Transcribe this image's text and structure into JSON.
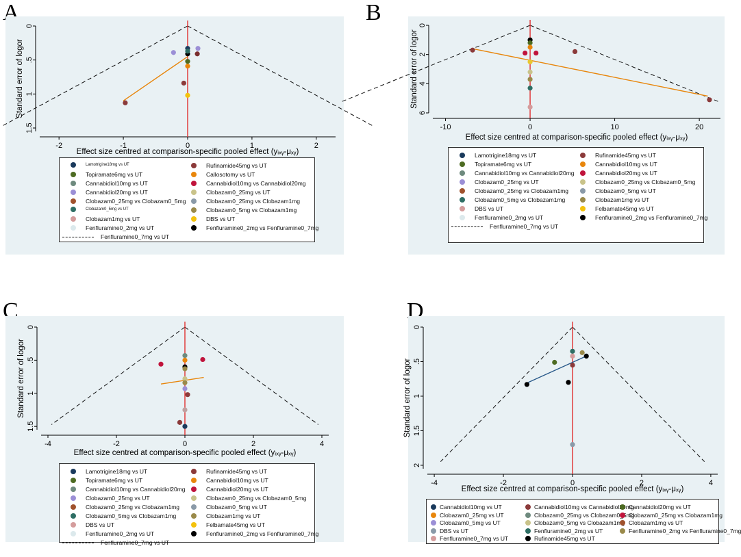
{
  "chart_data": [
    {
      "panel": "A",
      "type": "scatter",
      "ylabel": "Standard error of logor",
      "xlabel": "Effect size centred at comparison-specific pooled effect (yᵢₓᵧ-μₓᵧ)",
      "xlim": [
        -2.3,
        2.3
      ],
      "ylim": [
        0,
        1.55
      ],
      "xticks": [
        -2,
        -1,
        0,
        1,
        2
      ],
      "yticks": [
        0,
        0.5,
        1,
        1.5
      ],
      "ytick_labels": [
        "0",
        ".5",
        "1",
        "1.5"
      ],
      "funnel_half_width_per_se": 1.96,
      "points": [
        {
          "x": 0.0,
          "y": 0.33,
          "c": "#1a3a5c"
        },
        {
          "x": 0.16,
          "y": 0.33,
          "c": "#9b8fd6"
        },
        {
          "x": -0.22,
          "y": 0.39,
          "c": "#9b8fd6"
        },
        {
          "x": 0.15,
          "y": 0.41,
          "c": "#7a2e2e"
        },
        {
          "x": 0.0,
          "y": 0.41,
          "c": "#000000"
        },
        {
          "x": 0.0,
          "y": 0.37,
          "c": "#2e6e64"
        },
        {
          "x": 0.0,
          "y": 0.52,
          "c": "#4d6b22"
        },
        {
          "x": 0.0,
          "y": 0.59,
          "c": "#e8860c"
        },
        {
          "x": -0.06,
          "y": 0.84,
          "c": "#8b3a3a"
        },
        {
          "x": 0.0,
          "y": 1.02,
          "c": "#f4c20d"
        },
        {
          "x": -0.97,
          "y": 1.13,
          "c": "#8b3a3a"
        }
      ],
      "fit_line": [
        [
          -1.0,
          1.1
        ],
        [
          0.0,
          0.45
        ]
      ],
      "legend": {
        "columns": [
          [
            "Lamotrigine18mg vs UT",
            "Topiramate6mg vs UT",
            "Cannabidiol10mg vs UT",
            "Cannabidiol20mg vs UT",
            "Clobazam0_25mg vs Clobazam0_5mg",
            "Clobazam0_5mg vs UT",
            "Clobazam1mg vs UT",
            "Fenfluramine0_2mg vs UT"
          ],
          [
            "Rufinamide45mg vs UT",
            "Callosotomy vs UT",
            "Cannabidiol10mg vs Cannabidiol20mg",
            "Clobazam0_25mg vs UT",
            "Clobazam0_25mg vs Clobazam1mg",
            "Clobazam0_5mg vs Clobazam1mg",
            "DBS vs UT",
            "Fenfluramine0_2mg vs Fenfluramine0_7mg"
          ]
        ],
        "colors": [
          [
            "#1a3a5c",
            "#4d6b22",
            "#6e8a7e",
            "#9b8fd6",
            "#a0522d",
            "#2e6e64",
            "#d49c9c",
            "#dce9ec"
          ],
          [
            "#8b3a3a",
            "#e8860c",
            "#c0143c",
            "#c9c38a",
            "#8a9aa8",
            "#9a8a4a",
            "#f4c20d",
            "#000000"
          ]
        ],
        "line_label": "Fenfluramine0_7mg vs UT"
      }
    },
    {
      "panel": "B",
      "type": "scatter",
      "ylabel": "Standard error of logor",
      "xlabel": "Effect size centred at comparison-specific pooled effect (yᵢₓᵧ-μₓᵧ)",
      "xlim": [
        -11.5,
        22.5
      ],
      "ylim": [
        0,
        6.0
      ],
      "xticks": [
        -10,
        0,
        10,
        20
      ],
      "yticks": [
        0,
        2,
        4,
        6
      ],
      "ytick_labels": [
        "0",
        "2",
        "4",
        "6"
      ],
      "funnel_half_width_per_se": 1.96,
      "points": [
        {
          "x": 0.0,
          "y": 1.0,
          "c": "#000000"
        },
        {
          "x": 0.0,
          "y": 1.2,
          "c": "#4d6b22"
        },
        {
          "x": 0.0,
          "y": 1.5,
          "c": "#e8860c"
        },
        {
          "x": -0.6,
          "y": 1.9,
          "c": "#c0143c"
        },
        {
          "x": 0.7,
          "y": 1.9,
          "c": "#c0143c"
        },
        {
          "x": 5.3,
          "y": 1.8,
          "c": "#8b3a3a"
        },
        {
          "x": -6.8,
          "y": 1.7,
          "c": "#8b3a3a"
        },
        {
          "x": 0.0,
          "y": 2.5,
          "c": "#e8c830"
        },
        {
          "x": 0.0,
          "y": 3.2,
          "c": "#c9c38a"
        },
        {
          "x": 0.0,
          "y": 3.7,
          "c": "#9a8a4a"
        },
        {
          "x": 0.0,
          "y": 4.3,
          "c": "#2e6e64"
        },
        {
          "x": 0.0,
          "y": 5.6,
          "c": "#d49c9c"
        },
        {
          "x": 21.2,
          "y": 5.1,
          "c": "#8b3a3a"
        }
      ],
      "fit_line": [
        [
          -6.8,
          1.6
        ],
        [
          21.0,
          4.85
        ]
      ],
      "legend": {
        "columns": [
          [
            "Lamotrigine18mg vs UT",
            "Topiramate6mg vs UT",
            "Cannabidiol10mg vs Cannabidiol20mg",
            "Clobazam0_25mg vs UT",
            "Clobazam0_25mg vs Clobazam1mg",
            "Clobazam0_5mg vs Clobazam1mg",
            "DBS vs UT",
            "Fenfluramine0_2mg vs UT"
          ],
          [
            "Rufinamide45mg vs UT",
            "Cannabidiol10mg vs UT",
            "Cannabidiol20mg vs UT",
            "Clobazam0_25mg vs Clobazam0_5mg",
            "Clobazam0_5mg vs UT",
            "Clobazam1mg vs UT",
            "Felbamate45mg vs UT",
            "Fenfluramine0_2mg vs Fenfluramine0_7mg"
          ]
        ],
        "colors": [
          [
            "#1a3a5c",
            "#4d6b22",
            "#6e8a7e",
            "#9b8fd6",
            "#a0522d",
            "#2e6e64",
            "#d49c9c",
            "#dce9ec"
          ],
          [
            "#8b3a3a",
            "#e8860c",
            "#c0143c",
            "#c9c38a",
            "#8a9aa8",
            "#9a8a4a",
            "#f4c20d",
            "#000000"
          ]
        ],
        "line_label": "Fenfluramine0_7mg vs UT"
      }
    },
    {
      "panel": "C",
      "type": "scatter",
      "ylabel": "Standard error of logor",
      "xlabel": "Effect size centred at comparison-specific pooled effect (yᵢₓᵧ-μₓᵧ)",
      "xlim": [
        -4.2,
        4.2
      ],
      "ylim": [
        0,
        1.55
      ],
      "xticks": [
        -4,
        -2,
        0,
        2,
        4
      ],
      "yticks": [
        0,
        0.5,
        1,
        1.5
      ],
      "ytick_labels": [
        "0",
        ".5",
        "1",
        "1.5"
      ],
      "funnel_half_width_per_se": 1.96,
      "points": [
        {
          "x": 0.0,
          "y": 0.43,
          "c": "#6e8a7e"
        },
        {
          "x": 0.0,
          "y": 0.5,
          "c": "#e8860c"
        },
        {
          "x": 0.52,
          "y": 0.49,
          "c": "#c0143c"
        },
        {
          "x": -0.7,
          "y": 0.56,
          "c": "#c0143c"
        },
        {
          "x": 0.0,
          "y": 0.6,
          "c": "#000000"
        },
        {
          "x": 0.0,
          "y": 0.63,
          "c": "#9a8a4a"
        },
        {
          "x": 0.0,
          "y": 0.78,
          "c": "#c9c38a"
        },
        {
          "x": 0.0,
          "y": 0.84,
          "c": "#9a8a4a"
        },
        {
          "x": 0.0,
          "y": 0.93,
          "c": "#9b8fd6"
        },
        {
          "x": 0.08,
          "y": 1.02,
          "c": "#8b3a3a"
        },
        {
          "x": 0.0,
          "y": 1.25,
          "c": "#c0a0a0"
        },
        {
          "x": -0.15,
          "y": 1.44,
          "c": "#8b3a3a"
        },
        {
          "x": 0.0,
          "y": 1.5,
          "c": "#1a3a5c"
        }
      ],
      "fit_line": [
        [
          -0.7,
          0.86
        ],
        [
          0.55,
          0.76
        ]
      ],
      "legend": {
        "columns": [
          [
            "Lamotrigine18mg vs UT",
            "Topiramate6mg vs UT",
            "Cannabidiol10mg vs Cannabidiol20mg",
            "Clobazam0_25mg vs UT",
            "Clobazam0_25mg vs Clobazam1mg",
            "Clobazam0_5mg vs Clobazam1mg",
            "DBS vs UT",
            "Fenfluramine0_2mg vs UT"
          ],
          [
            "Rufinamide45mg vs UT",
            "Cannabidiol10mg vs UT",
            "Cannabidiol20mg vs UT",
            "Clobazam0_25mg vs Clobazam0_5mg",
            "Clobazam0_5mg vs UT",
            "Clobazam1mg vs UT",
            "Felbamate45mg vs UT",
            "Fenfluramine0_2mg vs Fenfluramine0_7mg"
          ]
        ],
        "colors": [
          [
            "#1a3a5c",
            "#4d6b22",
            "#6e8a7e",
            "#9b8fd6",
            "#a0522d",
            "#2e6e64",
            "#d49c9c",
            "#dce9ec"
          ],
          [
            "#8b3a3a",
            "#e8860c",
            "#c0143c",
            "#c9c38a",
            "#8a9aa8",
            "#9a8a4a",
            "#f4c20d",
            "#000000"
          ]
        ],
        "line_label": "Fenfluramine0_7mg vs UT"
      }
    },
    {
      "panel": "D",
      "type": "scatter",
      "ylabel": "Standard error of logor",
      "xlabel": "Effect size centred at comparison-specific pooled effect (yᵢₓᵧ-μₓᵧ)",
      "xlim": [
        -4.2,
        4.2
      ],
      "ylim": [
        0,
        2.05
      ],
      "xticks": [
        -4,
        -2,
        0,
        2,
        4
      ],
      "yticks": [
        0,
        0.5,
        1,
        1.5,
        2
      ],
      "ytick_labels": [
        "0",
        ".5",
        "1",
        "1.5",
        "2"
      ],
      "funnel_half_width_per_se": 1.96,
      "points": [
        {
          "x": 0.0,
          "y": 0.35,
          "c": "#2e6e64"
        },
        {
          "x": 0.28,
          "y": 0.37,
          "c": "#9a8a4a"
        },
        {
          "x": 0.0,
          "y": 0.42,
          "c": "#d49c9c"
        },
        {
          "x": 0.4,
          "y": 0.42,
          "c": "#000000"
        },
        {
          "x": -0.52,
          "y": 0.51,
          "c": "#4d6b22"
        },
        {
          "x": 0.0,
          "y": 0.55,
          "c": "#8b3a3a"
        },
        {
          "x": -0.12,
          "y": 0.8,
          "c": "#000000"
        },
        {
          "x": -1.32,
          "y": 0.83,
          "c": "#000000"
        },
        {
          "x": 0.0,
          "y": 1.7,
          "c": "#8a9aa8"
        }
      ],
      "fit_line": [
        [
          -1.32,
          0.81
        ],
        [
          0.4,
          0.42
        ]
      ],
      "legend": {
        "columns": [
          [
            "Cannabidiol10mg vs UT",
            "Clobazam0_25mg vs UT",
            "Clobazam0_5mg vs UT",
            "DBS vs UT",
            "Fenfluramine0_7mg vs UT"
          ],
          [
            "Cannabidiol10mg vs Cannabidiol20mg",
            "Clobazam0_25mg vs Clobazam0_5mg",
            "Clobazam0_5mg vs Clobazam1mg",
            "Fenfluramine0_2mg vs UT",
            "Rufinamide45mg vs UT"
          ],
          [
            "Cannabidiol20mg vs UT",
            "Clobazam0_25mg vs Clobazam1mg",
            "Clobazam1mg vs UT",
            "Fenfluramine0_2mg vs Fenfluramine0_7mg"
          ]
        ],
        "colors": [
          [
            "#1a3a5c",
            "#e8860c",
            "#9b8fd6",
            "#8a9aa8",
            "#d49c9c"
          ],
          [
            "#8b3a3a",
            "#6e8a7e",
            "#c9c38a",
            "#2e6e64",
            "#000000"
          ],
          [
            "#4d6b22",
            "#c0143c",
            "#a0522d",
            "#9a8a4a"
          ]
        ]
      }
    }
  ]
}
